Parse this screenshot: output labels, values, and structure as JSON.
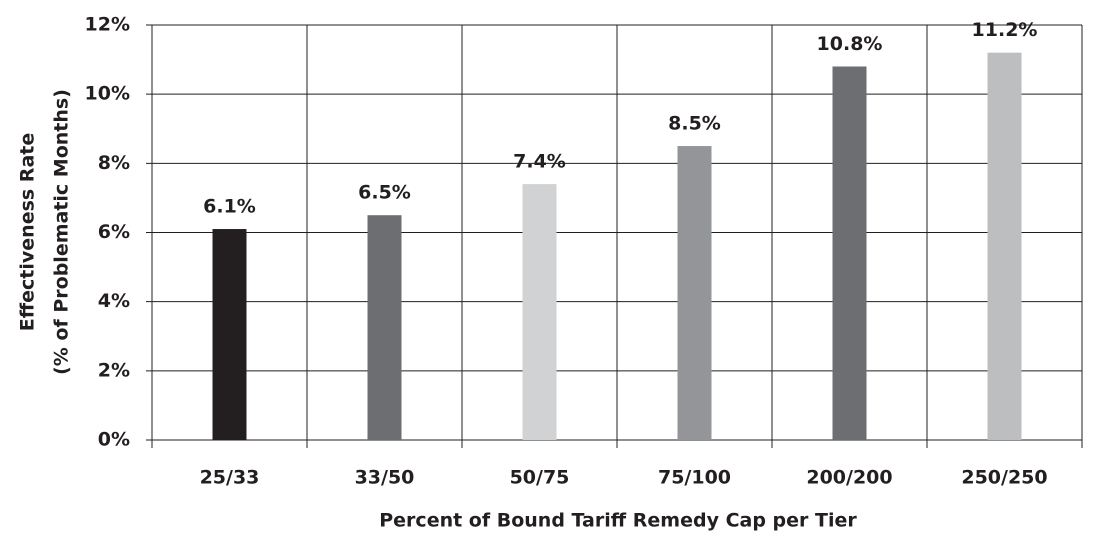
{
  "chart_data": {
    "type": "bar",
    "xlabel": "Percent of Bound Tariff Remedy Cap per Tier",
    "ylabel": [
      "Effectiveness Rate",
      "(% of Problematic Months)"
    ],
    "categories": [
      "25/33",
      "33/50",
      "50/75",
      "75/100",
      "200/200",
      "250/250"
    ],
    "values": [
      6.1,
      6.5,
      7.4,
      8.5,
      10.8,
      11.2
    ],
    "value_labels": [
      "6.1%",
      "6.5%",
      "7.4%",
      "8.5%",
      "10.8%",
      "11.2%"
    ],
    "colors": [
      "#231f20",
      "#6d6e71",
      "#d1d2d4",
      "#939598",
      "#6d6e71",
      "#bcbec0"
    ],
    "ylim": [
      0,
      12
    ],
    "yticks": [
      {
        "value": 0,
        "label": "0%"
      },
      {
        "value": 2,
        "label": "2%"
      },
      {
        "value": 4,
        "label": "4%"
      },
      {
        "value": 6,
        "label": "6%"
      },
      {
        "value": 8,
        "label": "8%"
      },
      {
        "value": 10,
        "label": "10%"
      },
      {
        "value": 12,
        "label": "12%"
      }
    ],
    "grid": true
  }
}
